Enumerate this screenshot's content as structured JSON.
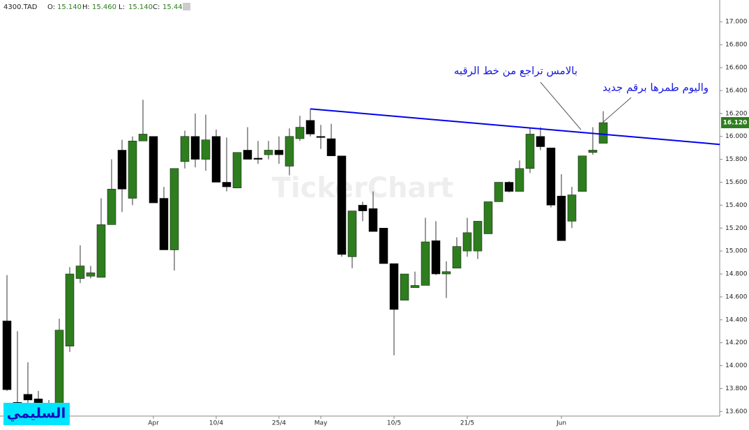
{
  "chart_data": {
    "type": "candlestick",
    "header": {
      "symbol": "4300.TAD",
      "items": [
        {
          "label": "O:",
          "value": "15.140"
        },
        {
          "label": "H:",
          "value": "15.460"
        },
        {
          "label": "L:",
          "value": "15.140"
        },
        {
          "label": "C:",
          "value": "15.440"
        }
      ]
    },
    "watermark": "TickerChart",
    "badge": "السليمي",
    "annotations": [
      "بالامس تراجع من خط الرقبه",
      "واليوم طمرها برقم جديد"
    ],
    "categories": [
      null,
      null,
      null,
      null,
      null,
      null,
      null,
      null,
      null,
      null,
      null,
      null,
      null,
      null,
      "Apr",
      null,
      null,
      null,
      null,
      null,
      "10/4",
      null,
      null,
      null,
      null,
      null,
      "25/4",
      null,
      null,
      null,
      "May",
      null,
      null,
      null,
      null,
      null,
      null,
      "10/5",
      null,
      null,
      null,
      null,
      null,
      null,
      "21/5",
      null,
      null,
      null,
      null,
      null,
      null,
      null,
      null,
      "Jun",
      null,
      null,
      null,
      null
    ],
    "open": [
      14.39,
      13.68,
      13.75,
      13.71,
      13.62,
      13.67,
      14.17,
      14.76,
      14.78,
      14.77,
      15.23,
      15.88,
      15.46,
      15.96,
      16.0,
      15.46,
      15.01,
      15.78,
      16.0,
      15.8,
      16.0,
      15.6,
      15.55,
      15.88,
      15.81,
      15.84,
      15.88,
      15.74,
      15.98,
      16.14,
      16.0,
      15.98,
      15.83,
      14.95,
      15.4,
      15.37,
      15.2,
      14.89,
      14.57,
      14.68,
      14.7,
      15.09,
      14.8,
      14.85,
      15.0,
      15.0,
      15.15,
      15.43,
      15.6,
      15.52,
      15.72,
      16.0,
      15.9,
      15.48,
      15.26,
      15.52,
      15.86,
      15.94
    ],
    "high": [
      14.79,
      14.3,
      14.03,
      13.78,
      13.7,
      14.41,
      14.86,
      15.05,
      14.87,
      15.46,
      15.8,
      15.97,
      16.0,
      16.32,
      16.0,
      15.56,
      15.72,
      16.05,
      16.2,
      16.19,
      16.06,
      15.99,
      15.86,
      16.08,
      15.96,
      15.96,
      16.0,
      16.07,
      16.18,
      16.24,
      16.1,
      16.11,
      15.83,
      15.35,
      15.43,
      15.52,
      15.2,
      14.89,
      14.8,
      14.82,
      15.29,
      15.26,
      14.91,
      15.12,
      15.29,
      15.26,
      15.43,
      15.6,
      15.61,
      15.79,
      16.08,
      16.08,
      15.9,
      15.67,
      15.56,
      15.83,
      16.08,
      16.22
    ],
    "low": [
      13.78,
      13.6,
      13.6,
      13.6,
      13.6,
      13.6,
      14.12,
      14.72,
      14.76,
      14.77,
      15.23,
      15.34,
      15.4,
      15.96,
      15.42,
      15.01,
      14.83,
      15.72,
      15.73,
      15.7,
      15.6,
      15.52,
      15.55,
      15.8,
      15.76,
      15.8,
      15.76,
      15.66,
      15.96,
      16.0,
      15.89,
      15.83,
      14.95,
      14.85,
      15.26,
      15.17,
      14.89,
      14.09,
      14.57,
      14.68,
      14.7,
      14.79,
      14.59,
      14.85,
      14.95,
      14.93,
      15.15,
      15.43,
      15.51,
      15.52,
      15.68,
      15.88,
      15.38,
      15.09,
      15.2,
      15.52,
      15.84,
      15.94
    ],
    "close": [
      13.79,
      13.63,
      13.7,
      13.64,
      13.66,
      14.31,
      14.8,
      14.87,
      14.81,
      15.23,
      15.54,
      15.54,
      15.96,
      16.02,
      15.42,
      15.01,
      15.72,
      16.0,
      15.8,
      15.97,
      15.6,
      15.56,
      15.86,
      15.8,
      15.8,
      15.88,
      15.84,
      16.0,
      16.08,
      16.02,
      15.99,
      15.83,
      14.97,
      15.35,
      15.35,
      15.17,
      14.89,
      14.49,
      14.8,
      14.7,
      15.08,
      14.8,
      14.82,
      15.04,
      15.16,
      15.26,
      15.43,
      15.6,
      15.52,
      15.72,
      16.02,
      15.91,
      15.4,
      15.09,
      15.49,
      15.83,
      15.88,
      16.12
    ],
    "up_color": "#2e7d1e",
    "down_color": "#000000",
    "last_price": {
      "value": 16.12,
      "label": "16.120"
    },
    "trendline": {
      "start": 16.24,
      "end": 15.93,
      "color": "#0000ee"
    },
    "ylim": [
      13.56,
      17.19
    ],
    "yticks": [
      {
        "value": 13.6,
        "label": "13.600"
      },
      {
        "value": 13.8,
        "label": "13.800"
      },
      {
        "value": 14,
        "label": "14.000"
      },
      {
        "value": 14.2,
        "label": "14.200"
      },
      {
        "value": 14.4,
        "label": "14.400"
      },
      {
        "value": 14.6,
        "label": "14.600"
      },
      {
        "value": 14.8,
        "label": "14.800"
      },
      {
        "value": 15,
        "label": "15.000"
      },
      {
        "value": 15.2,
        "label": "15.200"
      },
      {
        "value": 15.4,
        "label": "15.400"
      },
      {
        "value": 15.6,
        "label": "15.600"
      },
      {
        "value": 15.8,
        "label": "15.800"
      },
      {
        "value": 16,
        "label": "16.000"
      },
      {
        "value": 16.2,
        "label": "16.200"
      },
      {
        "value": 16.4,
        "label": "16.400"
      },
      {
        "value": 16.6,
        "label": "16.600"
      },
      {
        "value": 16.8,
        "label": "16.800"
      },
      {
        "value": 17,
        "label": "17.000"
      }
    ]
  }
}
